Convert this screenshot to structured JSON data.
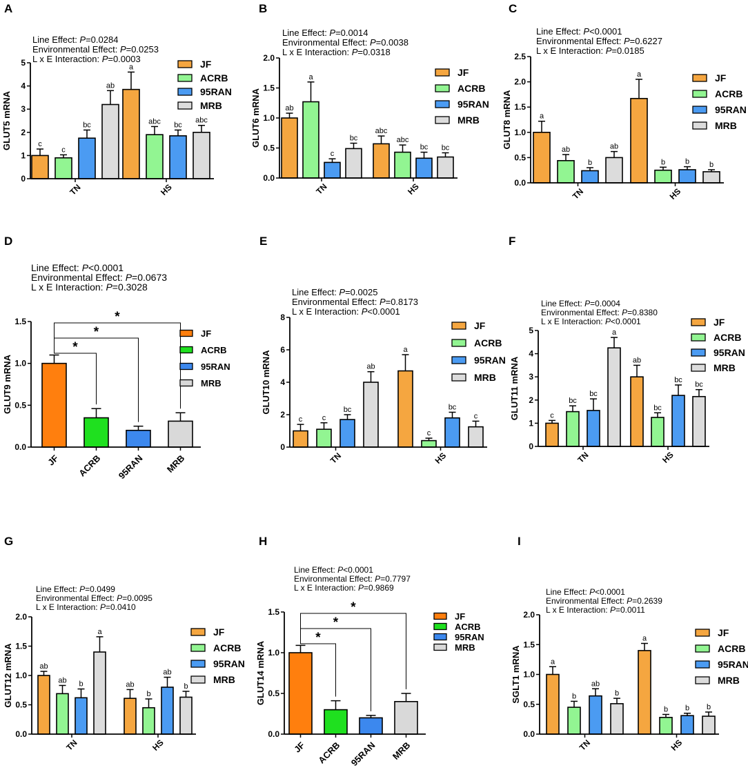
{
  "chart_data": [
    {
      "panel": "A",
      "type": "bar",
      "style": "grouped",
      "ylabel": "GLUT5 mRNA",
      "ylim": [
        0,
        5
      ],
      "yticks": [
        0,
        1,
        2,
        3,
        4,
        5
      ],
      "categories": [
        "TN",
        "HS"
      ],
      "stats": [
        "Line Effect: P=0.0284",
        "Environmental Effect: P=0.0253",
        "L x E Interaction: P=0.0003"
      ],
      "series": [
        {
          "name": "JF",
          "values": [
            1.0,
            3.85
          ],
          "errors": [
            0.28,
            0.75
          ],
          "letters": [
            "c",
            "a"
          ]
        },
        {
          "name": "ACRB",
          "values": [
            0.9,
            1.9
          ],
          "errors": [
            0.13,
            0.35
          ],
          "letters": [
            "c",
            "abc"
          ]
        },
        {
          "name": "95RAN",
          "values": [
            1.75,
            1.85
          ],
          "errors": [
            0.35,
            0.25
          ],
          "letters": [
            "bc",
            "bc"
          ]
        },
        {
          "name": "MRB",
          "values": [
            3.2,
            2.0
          ],
          "errors": [
            0.6,
            0.3
          ],
          "letters": [
            "ab",
            "abc"
          ]
        }
      ]
    },
    {
      "panel": "B",
      "type": "bar",
      "style": "grouped",
      "ylabel": "GLUT6 mRNA",
      "ylim": [
        0,
        2.0
      ],
      "yticks": [
        0.0,
        0.5,
        1.0,
        1.5,
        2.0
      ],
      "categories": [
        "TN",
        "HS"
      ],
      "stats": [
        "Line Effect: P=0.0014",
        "Environmental Effect: P=0.0038",
        "L x E Interaction: P=0.0318"
      ],
      "series": [
        {
          "name": "JF",
          "values": [
            1.0,
            0.57
          ],
          "errors": [
            0.08,
            0.13
          ],
          "letters": [
            "ab",
            "abc"
          ]
        },
        {
          "name": "ACRB",
          "values": [
            1.27,
            0.43
          ],
          "errors": [
            0.33,
            0.12
          ],
          "letters": [
            "a",
            "abc"
          ]
        },
        {
          "name": "95RAN",
          "values": [
            0.26,
            0.33
          ],
          "errors": [
            0.06,
            0.1
          ],
          "letters": [
            "c",
            "bc"
          ]
        },
        {
          "name": "MRB",
          "values": [
            0.49,
            0.35
          ],
          "errors": [
            0.09,
            0.07
          ],
          "letters": [
            "bc",
            "bc"
          ]
        }
      ]
    },
    {
      "panel": "C",
      "type": "bar",
      "style": "grouped",
      "ylabel": "GLUT8 mRNA",
      "ylim": [
        0,
        2.5
      ],
      "yticks": [
        0.0,
        0.5,
        1.0,
        1.5,
        2.0,
        2.5
      ],
      "categories": [
        "TN",
        "HS"
      ],
      "stats": [
        "Line Effect: P<0.0001",
        "Environmental Effect: P=0.6227",
        "L x E Interaction: P=0.0185"
      ],
      "series": [
        {
          "name": "JF",
          "values": [
            1.0,
            1.67
          ],
          "errors": [
            0.22,
            0.38
          ],
          "letters": [
            "a",
            "a"
          ]
        },
        {
          "name": "ACRB",
          "values": [
            0.44,
            0.25
          ],
          "errors": [
            0.12,
            0.06
          ],
          "letters": [
            "ab",
            "b"
          ]
        },
        {
          "name": "95RAN",
          "values": [
            0.24,
            0.26
          ],
          "errors": [
            0.06,
            0.06
          ],
          "letters": [
            "b",
            "b"
          ]
        },
        {
          "name": "MRB",
          "values": [
            0.5,
            0.22
          ],
          "errors": [
            0.12,
            0.04
          ],
          "letters": [
            "ab",
            "b"
          ]
        }
      ]
    },
    {
      "panel": "D",
      "type": "bar",
      "style": "single",
      "ylabel": "GLUT9 mRNA",
      "ylim": [
        0,
        1.5
      ],
      "yticks": [
        0.0,
        0.5,
        1.0,
        1.5
      ],
      "categories": [
        "JF",
        "ACRB",
        "95RAN",
        "MRB"
      ],
      "values": [
        1.0,
        0.35,
        0.2,
        0.31
      ],
      "errors": [
        0.1,
        0.11,
        0.05,
        0.1
      ],
      "significance": [
        "*",
        "*",
        "*"
      ],
      "stats": [
        "Line Effect: P<0.0001",
        "Environmental Effect: P=0.0673",
        "L x E Interaction: P=0.3028"
      ]
    },
    {
      "panel": "E",
      "type": "bar",
      "style": "grouped",
      "ylabel": "GLUT10 mRNA",
      "ylim": [
        0,
        8
      ],
      "yticks": [
        0,
        2,
        4,
        6,
        8
      ],
      "categories": [
        "TN",
        "HS"
      ],
      "stats": [
        "Line Effect: P=0.0025",
        "Environmental Effect: P=0.8173",
        "L x E Interaction: P<0.0001"
      ],
      "series": [
        {
          "name": "JF",
          "values": [
            1.0,
            4.7
          ],
          "errors": [
            0.4,
            1.0
          ],
          "letters": [
            "c",
            "a"
          ]
        },
        {
          "name": "ACRB",
          "values": [
            1.1,
            0.4
          ],
          "errors": [
            0.4,
            0.15
          ],
          "letters": [
            "c",
            "c"
          ]
        },
        {
          "name": "95RAN",
          "values": [
            1.7,
            1.8
          ],
          "errors": [
            0.3,
            0.35
          ],
          "letters": [
            "bc",
            "bc"
          ]
        },
        {
          "name": "MRB",
          "values": [
            4.0,
            1.25
          ],
          "errors": [
            0.65,
            0.35
          ],
          "letters": [
            "ab",
            "c"
          ]
        }
      ]
    },
    {
      "panel": "F",
      "type": "bar",
      "style": "grouped",
      "ylabel": "GLUT11 mRNA",
      "ylim": [
        0,
        5
      ],
      "yticks": [
        0,
        1,
        2,
        3,
        4,
        5
      ],
      "categories": [
        "TN",
        "HS"
      ],
      "stats": [
        "Line Effect: P=0.0004",
        "Environmental Effect: P=0.8380",
        "L x E Interaction: P<0.0001"
      ],
      "series": [
        {
          "name": "JF",
          "values": [
            1.0,
            3.0
          ],
          "errors": [
            0.12,
            0.5
          ],
          "letters": [
            "c",
            "ab"
          ]
        },
        {
          "name": "ACRB",
          "values": [
            1.5,
            1.25
          ],
          "errors": [
            0.25,
            0.2
          ],
          "letters": [
            "bc",
            "bc"
          ]
        },
        {
          "name": "95RAN",
          "values": [
            1.55,
            2.2
          ],
          "errors": [
            0.5,
            0.45
          ],
          "letters": [
            "bc",
            "bc"
          ]
        },
        {
          "name": "MRB",
          "values": [
            4.25,
            2.15
          ],
          "errors": [
            0.45,
            0.3
          ],
          "letters": [
            "a",
            "bc"
          ]
        }
      ]
    },
    {
      "panel": "G",
      "type": "bar",
      "style": "grouped",
      "ylabel": "GLUT12 mRNA",
      "ylim": [
        0,
        2.0
      ],
      "yticks": [
        0.0,
        0.5,
        1.0,
        1.5,
        2.0
      ],
      "categories": [
        "TN",
        "HS"
      ],
      "stats": [
        "Line Effect: P=0.0499",
        "Environmental Effect: P=0.0095",
        "L x E Interaction: P=0.0410"
      ],
      "series": [
        {
          "name": "JF",
          "values": [
            1.0,
            0.61
          ],
          "errors": [
            0.07,
            0.15
          ],
          "letters": [
            "ab",
            "ab"
          ]
        },
        {
          "name": "ACRB",
          "values": [
            0.69,
            0.45
          ],
          "errors": [
            0.14,
            0.15
          ],
          "letters": [
            "ab",
            "b"
          ]
        },
        {
          "name": "95RAN",
          "values": [
            0.62,
            0.8
          ],
          "errors": [
            0.15,
            0.17
          ],
          "letters": [
            "b",
            "ab"
          ]
        },
        {
          "name": "MRB",
          "values": [
            1.4,
            0.63
          ],
          "errors": [
            0.26,
            0.1
          ],
          "letters": [
            "a",
            "b"
          ]
        }
      ]
    },
    {
      "panel": "H",
      "type": "bar",
      "style": "single",
      "ylabel": "GLUT14 mRNA",
      "ylim": [
        0,
        1.5
      ],
      "yticks": [
        0.0,
        0.5,
        1.0,
        1.5
      ],
      "categories": [
        "JF",
        "ACRB",
        "95RAN",
        "MRB"
      ],
      "values": [
        1.0,
        0.3,
        0.2,
        0.4
      ],
      "errors": [
        0.09,
        0.11,
        0.03,
        0.1
      ],
      "significance": [
        "*",
        "*",
        "*"
      ],
      "stats": [
        "Line Effect: P<0.0001",
        "Environmental Effect: P=0.7797",
        "L x E Interaction: P=0.9869"
      ]
    },
    {
      "panel": "I",
      "type": "bar",
      "style": "grouped",
      "ylabel": "SGLT1 mRNA",
      "ylim": [
        0,
        2.0
      ],
      "yticks": [
        0.0,
        0.5,
        1.0,
        1.5,
        2.0
      ],
      "categories": [
        "TN",
        "HS"
      ],
      "stats": [
        "Line Effect: P<0.0001",
        "Environmental Effect: P=0.2639",
        "L x E Interaction: P=0.0011"
      ],
      "series": [
        {
          "name": "JF",
          "values": [
            1.0,
            1.4
          ],
          "errors": [
            0.13,
            0.12
          ],
          "letters": [
            "a",
            "a"
          ]
        },
        {
          "name": "ACRB",
          "values": [
            0.45,
            0.28
          ],
          "errors": [
            0.1,
            0.05
          ],
          "letters": [
            "b",
            "b"
          ]
        },
        {
          "name": "95RAN",
          "values": [
            0.64,
            0.31
          ],
          "errors": [
            0.12,
            0.04
          ],
          "letters": [
            "ab",
            "b"
          ]
        },
        {
          "name": "MRB",
          "values": [
            0.51,
            0.3
          ],
          "errors": [
            0.09,
            0.07
          ],
          "letters": [
            "b",
            "b"
          ]
        }
      ]
    }
  ],
  "colors": {
    "grouped": {
      "JF": "#f5a640",
      "ACRB": "#92f592",
      "95RAN": "#4b9bf2",
      "MRB": "#dcdcdc"
    },
    "single": {
      "JF": "#ff7f0e",
      "ACRB": "#1fe01f",
      "95RAN": "#3c88ee",
      "MRB": "#d9d9d9"
    },
    "ink": "#000000"
  }
}
